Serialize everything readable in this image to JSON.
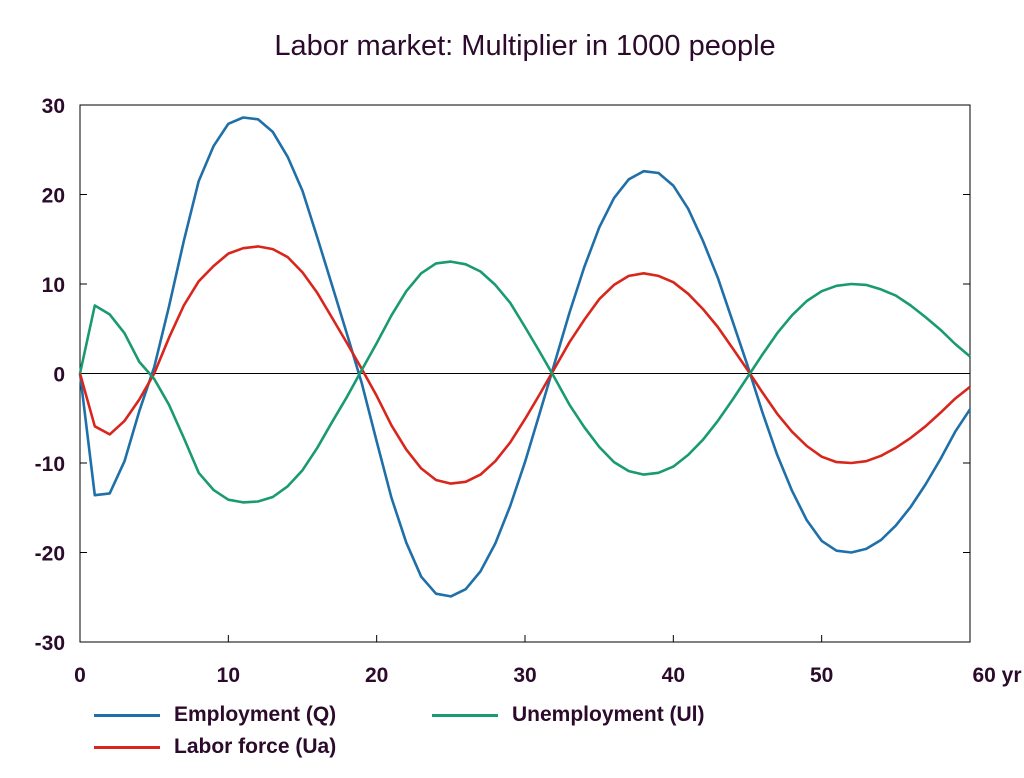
{
  "chart_data": {
    "type": "line",
    "title": "Labor market: Multiplier in 1000 people",
    "x_unit_label": "yr",
    "xlim": [
      0,
      60
    ],
    "ylim": [
      -30,
      30
    ],
    "x_ticks": [
      0,
      10,
      20,
      30,
      40,
      50,
      60
    ],
    "x_tick_labels": [
      "0",
      "10",
      "20",
      "30",
      "40",
      "50",
      "60 yr"
    ],
    "y_ticks": [
      30,
      20,
      10,
      0,
      -10,
      -20,
      -30
    ],
    "y_tick_labels": [
      "30",
      "20",
      "10",
      "0",
      "-10",
      "-20",
      "-30"
    ],
    "grid": false,
    "zero_line": true,
    "legend_position": "bottom",
    "x": [
      0,
      1,
      2,
      3,
      4,
      5,
      6,
      7,
      8,
      9,
      10,
      11,
      12,
      13,
      14,
      15,
      16,
      17,
      18,
      19,
      20,
      21,
      22,
      23,
      24,
      25,
      26,
      27,
      28,
      29,
      30,
      31,
      32,
      33,
      34,
      35,
      36,
      37,
      38,
      39,
      40,
      41,
      42,
      43,
      44,
      45,
      46,
      47,
      48,
      49,
      50,
      51,
      52,
      53,
      54,
      55,
      56,
      57,
      58,
      59,
      60
    ],
    "series": [
      {
        "name": "Employment (Q)",
        "color": "#1f6fa8",
        "values": [
          0,
          -13.6,
          -13.4,
          -9.8,
          -4.2,
          0.7,
          7.5,
          14.8,
          21.5,
          25.4,
          27.9,
          28.6,
          28.4,
          27.0,
          24.2,
          20.4,
          15.2,
          9.8,
          4.4,
          -1.1,
          -7.6,
          -13.9,
          -18.9,
          -22.7,
          -24.6,
          -24.9,
          -24.1,
          -22.1,
          -19.0,
          -14.8,
          -9.9,
          -4.4,
          1.2,
          6.8,
          11.9,
          16.3,
          19.6,
          21.7,
          22.6,
          22.4,
          21.0,
          18.4,
          14.8,
          10.7,
          5.8,
          0.9,
          -4.3,
          -9.1,
          -13.1,
          -16.4,
          -18.7,
          -19.8,
          -20.0,
          -19.6,
          -18.6,
          -17.0,
          -14.9,
          -12.4,
          -9.6,
          -6.5,
          -4.0
        ]
      },
      {
        "name": "Labor force (Ua)",
        "color": "#d9261c",
        "values": [
          0,
          -5.9,
          -6.8,
          -5.3,
          -2.9,
          0.0,
          4.0,
          7.6,
          10.3,
          12.0,
          13.4,
          14.0,
          14.2,
          13.9,
          13.0,
          11.3,
          9.0,
          6.2,
          3.4,
          0.5,
          -2.5,
          -5.8,
          -8.5,
          -10.6,
          -11.9,
          -12.3,
          -12.1,
          -11.3,
          -9.8,
          -7.7,
          -5.1,
          -2.3,
          0.6,
          3.5,
          6.0,
          8.3,
          9.9,
          10.9,
          11.2,
          10.9,
          10.2,
          8.9,
          7.2,
          5.2,
          2.8,
          0.4,
          -2.1,
          -4.5,
          -6.5,
          -8.1,
          -9.3,
          -9.9,
          -10.0,
          -9.8,
          -9.2,
          -8.3,
          -7.2,
          -5.9,
          -4.4,
          -2.8,
          -1.5
        ]
      },
      {
        "name": "Unemployment (Ul)",
        "color": "#1a9a72",
        "values": [
          0,
          7.6,
          6.6,
          4.5,
          1.3,
          -0.6,
          -3.5,
          -7.2,
          -11.1,
          -13.0,
          -14.1,
          -14.4,
          -14.3,
          -13.8,
          -12.6,
          -10.8,
          -8.3,
          -5.4,
          -2.6,
          0.4,
          3.4,
          6.5,
          9.2,
          11.2,
          12.3,
          12.5,
          12.2,
          11.4,
          9.9,
          7.9,
          5.2,
          2.4,
          -0.5,
          -3.5,
          -6.0,
          -8.2,
          -9.9,
          -10.9,
          -11.3,
          -11.1,
          -10.4,
          -9.1,
          -7.4,
          -5.3,
          -2.9,
          -0.4,
          2.1,
          4.5,
          6.5,
          8.1,
          9.2,
          9.8,
          10.0,
          9.9,
          9.4,
          8.7,
          7.6,
          6.3,
          4.9,
          3.3,
          1.9
        ]
      }
    ]
  }
}
